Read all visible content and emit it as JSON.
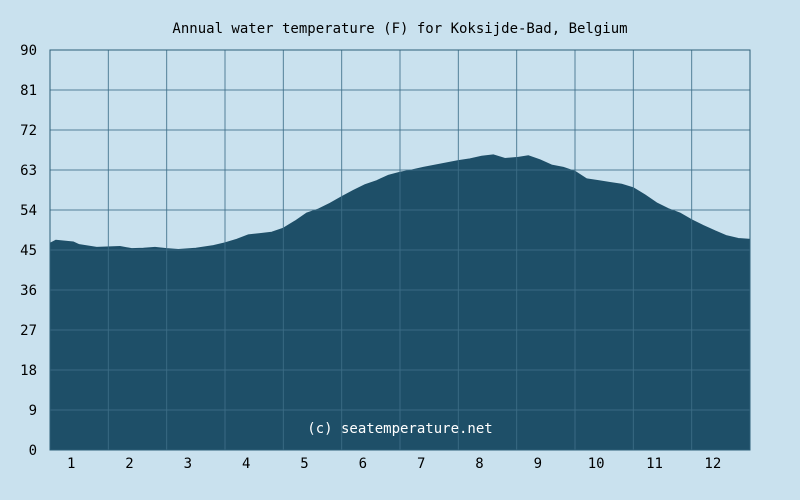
{
  "colors": {
    "background": "#c9e1ee",
    "plot_fill": "#1e4f68",
    "grid_line": "#2d5f78",
    "grid_line_over_fill": "#3e6f88",
    "text": "#000000",
    "watermark_text": "#ffffff"
  },
  "chart_data": {
    "type": "area",
    "title": "Annual water temperature (F) for Koksijde-Bad, Belgium",
    "watermark": "(c) seatemperature.net",
    "xlabel": "",
    "ylabel": "",
    "grid": true,
    "legend": "none",
    "x_tick_labels": [
      "1",
      "2",
      "3",
      "4",
      "5",
      "6",
      "7",
      "8",
      "9",
      "10",
      "11",
      "12"
    ],
    "y_ticks": [
      0,
      9,
      18,
      27,
      36,
      45,
      54,
      63,
      72,
      81,
      90
    ],
    "ylim": [
      0,
      90
    ],
    "xlim": [
      0.5,
      12.5
    ],
    "series": [
      {
        "x": [
          0.5,
          0.6,
          0.9,
          1.0,
          1.3,
          1.7,
          1.9,
          2.1,
          2.3,
          2.5,
          2.7,
          3.0,
          3.3,
          3.5,
          3.7,
          3.9,
          4.1,
          4.3,
          4.5,
          4.7,
          4.9,
          5.1,
          5.3,
          5.5,
          5.7,
          5.9,
          6.1,
          6.3,
          6.5,
          6.7,
          6.9,
          7.1,
          7.3,
          7.5,
          7.7,
          7.9,
          8.1,
          8.3,
          8.5,
          8.7,
          8.9,
          9.1,
          9.3,
          9.5,
          9.7,
          9.9,
          10.1,
          10.3,
          10.5,
          10.7,
          10.9,
          11.1,
          11.3,
          11.5,
          11.7,
          11.9,
          12.1,
          12.3,
          12.5
        ],
        "values": [
          46.5,
          47.2,
          46.8,
          46.2,
          45.6,
          45.8,
          45.3,
          45.4,
          45.6,
          45.3,
          45.1,
          45.4,
          46.0,
          46.6,
          47.4,
          48.4,
          48.7,
          49.0,
          49.9,
          51.5,
          53.3,
          54.2,
          55.5,
          57.0,
          58.4,
          59.7,
          60.6,
          61.8,
          62.5,
          63.0,
          63.6,
          64.1,
          64.6,
          65.1,
          65.5,
          66.1,
          66.4,
          65.6,
          65.8,
          66.2,
          65.3,
          64.1,
          63.6,
          62.7,
          61.0,
          60.6,
          60.2,
          59.8,
          59.0,
          57.4,
          55.6,
          54.3,
          53.3,
          51.8,
          50.5,
          49.3,
          48.2,
          47.6,
          47.4
        ]
      }
    ]
  }
}
